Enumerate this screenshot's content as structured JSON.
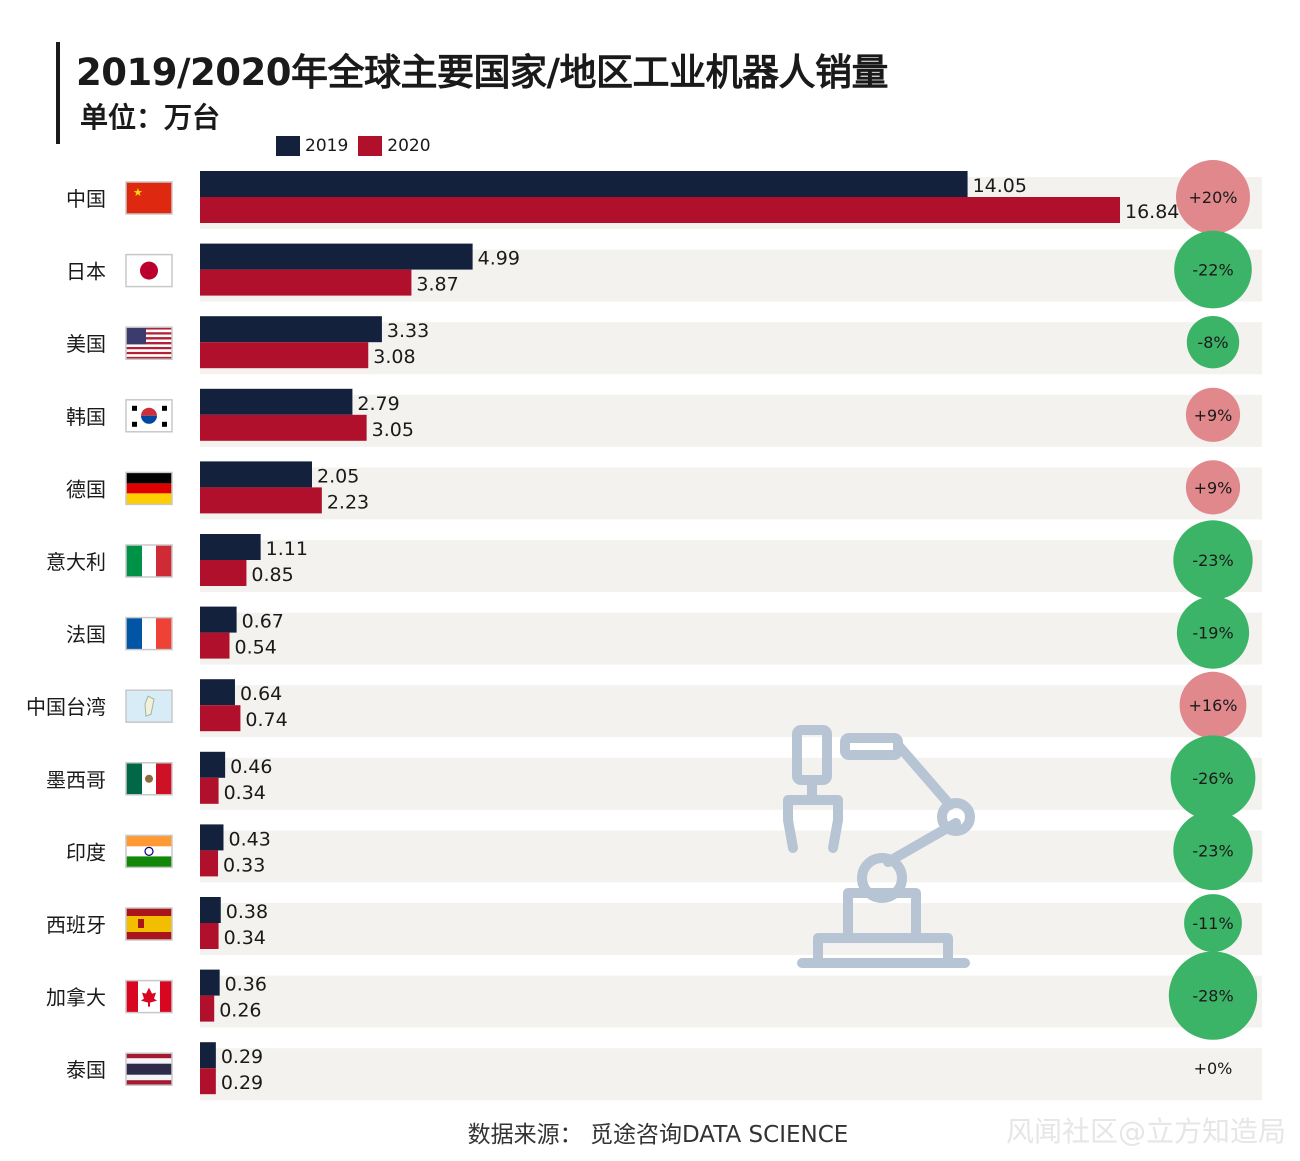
{
  "chart_data": {
    "type": "bar",
    "orientation": "horizontal",
    "title": "2019/2020年全球主要国家/地区工业机器人销量",
    "subtitle": "单位：万台",
    "categories": [
      "中国",
      "日本",
      "美国",
      "韩国",
      "德国",
      "意大利",
      "法国",
      "中国台湾",
      "墨西哥",
      "印度",
      "西班牙",
      "加拿大",
      "泰国"
    ],
    "series": [
      {
        "name": "2019",
        "color": "#14213d",
        "values": [
          14.05,
          4.99,
          3.33,
          2.79,
          2.05,
          1.11,
          0.67,
          0.64,
          0.46,
          0.43,
          0.38,
          0.36,
          0.29
        ]
      },
      {
        "name": "2020",
        "color": "#b0102b",
        "values": [
          16.84,
          3.87,
          3.08,
          3.05,
          2.23,
          0.85,
          0.54,
          0.74,
          0.34,
          0.33,
          0.34,
          0.26,
          0.29
        ]
      }
    ],
    "value_labels_2019": [
      "14.05",
      "4.99",
      "3.33",
      "2.79",
      "2.05",
      "1.11",
      "0.67",
      "0.64",
      "0.46",
      "0.43",
      "0.38",
      "0.36",
      "0.29"
    ],
    "value_labels_2020": [
      "16.84",
      "3.87",
      "3.08",
      "3.05",
      "2.23",
      "0.85",
      "0.54",
      "0.74",
      "0.34",
      "0.33",
      "0.34",
      "0.26",
      "0.29"
    ],
    "changes": [
      "+20%",
      "-22%",
      "-8%",
      "+9%",
      "+9%",
      "-23%",
      "-19%",
      "+16%",
      "-26%",
      "-23%",
      "-11%",
      "-28%",
      "+0%"
    ],
    "change_pct": [
      20,
      -22,
      -8,
      9,
      9,
      -23,
      -19,
      16,
      -26,
      -23,
      -11,
      -28,
      0
    ],
    "xlim": [
      0,
      17.5
    ],
    "legend": "top-left",
    "grid": false
  },
  "colors": {
    "increase": "#e0888c",
    "decrease": "#3cb467",
    "row_band": "#f3f2ef",
    "robot_icon": "#b7c4d3"
  },
  "source": "数据来源：  觅途咨询DATA SCIENCE",
  "watermark": "风闻社区@立方知造局"
}
